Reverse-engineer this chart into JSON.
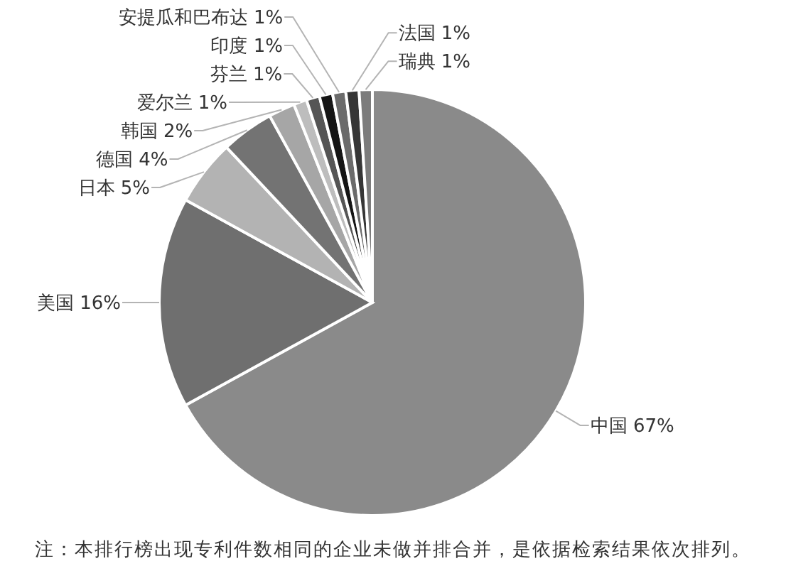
{
  "chart_data": {
    "type": "pie",
    "categories": [
      "中国",
      "美国",
      "日本",
      "德国",
      "韩国",
      "爱尔兰",
      "芬兰",
      "印度",
      "安提瓜和巴布达",
      "法国",
      "瑞典"
    ],
    "values": [
      67,
      16,
      5,
      4,
      2,
      1,
      1,
      1,
      1,
      1,
      1
    ],
    "colors": [
      "#8a8a8a",
      "#6f6f6f",
      "#b3b3b3",
      "#737373",
      "#a6a6a6",
      "#bdbdbd",
      "#555555",
      "#151515",
      "#6b6b6b",
      "#363636",
      "#7c7c7c"
    ],
    "value_labels": [
      "67%",
      "16%",
      "5%",
      "4%",
      "2%",
      "1%",
      "1%",
      "1%",
      "1%",
      "1%",
      "1%"
    ],
    "annotations": [
      "注：本排行榜出现专利件数相同的企业未做并排合并，是依据检索结果依次排列。"
    ]
  }
}
